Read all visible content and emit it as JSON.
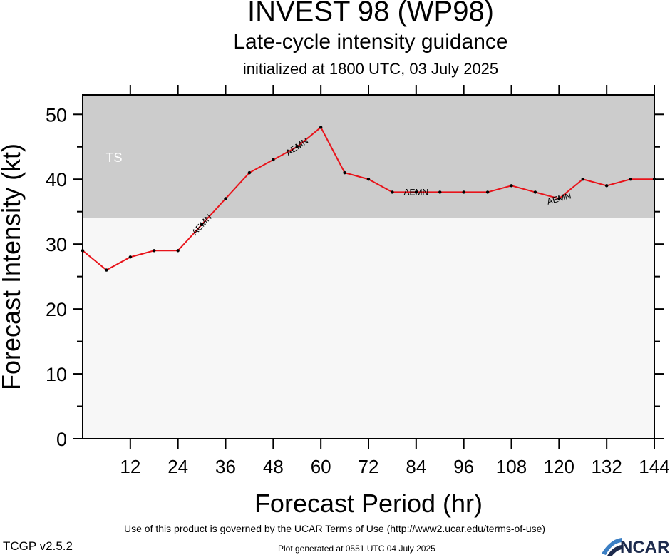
{
  "chart_data": {
    "type": "line",
    "title": "INVEST 98 (WP98)",
    "subtitle": "Late-cycle intensity guidance",
    "subtitle2": "initialized at 1800 UTC, 03 July 2025",
    "xlabel": "Forecast Period (hr)",
    "ylabel": "Forecast Intensity (kt)",
    "xlim": [
      0,
      144
    ],
    "ylim": [
      0,
      53
    ],
    "x_ticks": [
      12,
      24,
      36,
      48,
      60,
      72,
      84,
      96,
      108,
      120,
      132,
      144
    ],
    "y_ticks": [
      0,
      10,
      20,
      30,
      40,
      50
    ],
    "y_minor_ticks": [
      5,
      15,
      25,
      35,
      45
    ],
    "bands": [
      {
        "label": "TS",
        "from": 34,
        "to": 53,
        "color": "#cccccc"
      },
      {
        "label": "",
        "from": 0,
        "to": 34,
        "color": "#f7f7f7"
      }
    ],
    "series": [
      {
        "name": "AEMN",
        "color": "#e8141b",
        "label_at": [
          30,
          54,
          84,
          120
        ],
        "x": [
          0,
          6,
          12,
          18,
          24,
          30,
          36,
          42,
          48,
          54,
          60,
          66,
          72,
          78,
          84,
          90,
          96,
          102,
          108,
          114,
          120,
          126,
          132,
          138,
          144
        ],
        "y": [
          29,
          26,
          28,
          29,
          29,
          33,
          37,
          41,
          43,
          45,
          48,
          41,
          40,
          38,
          38,
          38,
          38,
          38,
          39,
          38,
          37,
          40,
          39,
          40,
          40
        ]
      }
    ]
  },
  "footer": {
    "terms": "Use of this product is governed by the UCAR Terms of Use (http://www2.ucar.edu/terms-of-use)",
    "version": "TCGP v2.5.2",
    "generated": "Plot generated at 0551 UTC   04 July 2025",
    "logo_text": "NCAR"
  }
}
